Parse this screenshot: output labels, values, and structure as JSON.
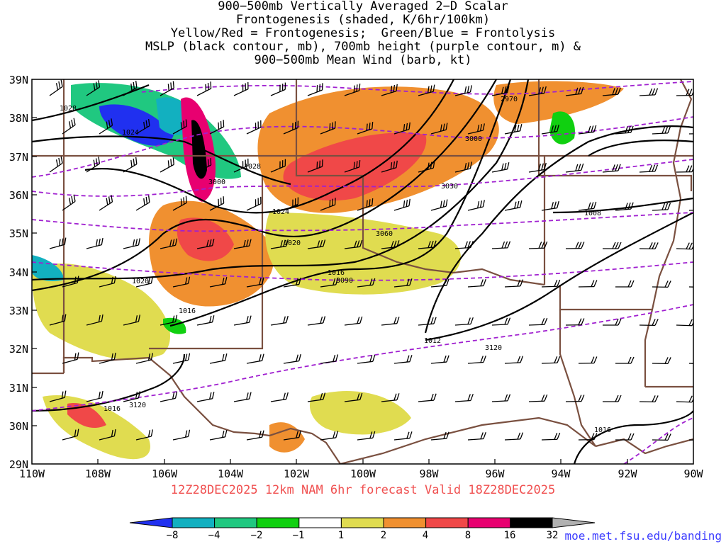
{
  "title": {
    "lines": [
      "900−500mb Vertically Averaged 2−D Scalar",
      "Frontogenesis (shaded, K/6hr/100km)",
      "Yellow/Red = Frontogenesis;  Green/Blue = Frontolysis",
      "MSLP (black contour, mb), 700mb height (purple contour, m) &",
      "900−500mb Mean Wind (barb, kt)"
    ]
  },
  "map": {
    "lon_range": [
      -110,
      -90
    ],
    "lat_range": [
      29,
      39
    ],
    "lon_ticks": [
      "110W",
      "108W",
      "106W",
      "104W",
      "102W",
      "100W",
      "98W",
      "96W",
      "94W",
      "92W",
      "90W"
    ],
    "lat_ticks": [
      "29N",
      "30N",
      "31N",
      "32N",
      "33N",
      "34N",
      "35N",
      "36N",
      "37N",
      "38N",
      "39N"
    ],
    "mslp_labels": [
      "1028",
      "1024",
      "1028",
      "1024",
      "1020",
      "1020",
      "1016",
      "1016",
      "1012",
      "1008",
      "1016",
      "1016"
    ],
    "height_labels": [
      "2970",
      "3000",
      "3000",
      "3030",
      "3060",
      "3090",
      "3120",
      "3120"
    ]
  },
  "colorbar": {
    "ticks": [
      "−8",
      "−4",
      "−2",
      "−1",
      "1",
      "2",
      "4",
      "8",
      "16",
      "32"
    ],
    "colors": [
      "#2030f0",
      "#12b0c0",
      "#20c880",
      "#10d010",
      "#ffffff",
      "#e0dc50",
      "#f09030",
      "#f04848",
      "#e80070",
      "#000000",
      "#b0b0b0"
    ]
  },
  "valid_line": "12Z28DEC2025 12km NAM 6hr forecast Valid 18Z28DEC2025",
  "credit": "moe.met.fsu.edu/banding"
}
